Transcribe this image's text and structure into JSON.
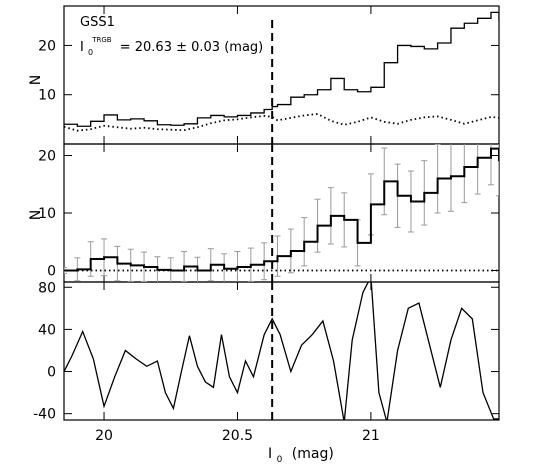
{
  "chart_data": [
    {
      "type": "line",
      "panel": "top",
      "title": "GSS1",
      "annotation": {
        "symbol": "I",
        "subscript": "0",
        "superscript": "TRGB",
        "text": "= 20.63 ± 0.03 (mag)"
      },
      "ylabel": "N",
      "xlim": [
        19.85,
        21.48
      ],
      "ylim": [
        0,
        28
      ],
      "yticks": [
        10,
        20
      ],
      "x": [
        19.85,
        19.9,
        19.95,
        20.0,
        20.05,
        20.1,
        20.15,
        20.2,
        20.25,
        20.3,
        20.35,
        20.4,
        20.45,
        20.5,
        20.55,
        20.6,
        20.63,
        20.65,
        20.7,
        20.75,
        20.8,
        20.85,
        20.9,
        20.95,
        21.0,
        21.05,
        21.1,
        21.15,
        21.2,
        21.25,
        21.3,
        21.35,
        21.4,
        21.45,
        21.48
      ],
      "series": [
        {
          "style": "step",
          "values": [
            4.0,
            3.6,
            4.6,
            5.9,
            4.9,
            5.1,
            4.7,
            3.9,
            3.8,
            4.1,
            5.3,
            5.8,
            5.5,
            5.8,
            6.3,
            7.0,
            7.6,
            8.0,
            9.5,
            10.0,
            11.0,
            13.3,
            11.0,
            10.6,
            11.5,
            16.5,
            20.0,
            19.8,
            19.3,
            20.5,
            23.5,
            24.5,
            25.5,
            26.7,
            25.0
          ]
        },
        {
          "style": "dotted",
          "values": [
            3.5,
            2.7,
            3.0,
            3.7,
            3.4,
            3.1,
            3.3,
            3.0,
            2.9,
            2.8,
            3.4,
            4.2,
            4.8,
            5.0,
            5.4,
            5.7,
            5.5,
            4.8,
            5.3,
            5.8,
            6.1,
            4.7,
            3.9,
            4.5,
            5.4,
            4.5,
            4.1,
            4.9,
            5.4,
            5.6,
            4.9,
            4.1,
            4.8,
            5.5,
            5.3
          ]
        }
      ],
      "trgb_line_x": 20.63
    },
    {
      "type": "line",
      "panel": "middle",
      "ylabel": "N",
      "xlim": [
        19.85,
        21.48
      ],
      "ylim": [
        -2,
        22
      ],
      "yticks": [
        0,
        10,
        20
      ],
      "x": [
        19.85,
        19.9,
        19.95,
        20.0,
        20.05,
        20.1,
        20.15,
        20.2,
        20.25,
        20.3,
        20.35,
        20.4,
        20.45,
        20.5,
        20.55,
        20.6,
        20.65,
        20.7,
        20.75,
        20.8,
        20.85,
        20.9,
        20.95,
        21.0,
        21.05,
        21.1,
        21.15,
        21.2,
        21.25,
        21.3,
        21.35,
        21.4,
        21.45,
        21.48
      ],
      "series": [
        {
          "style": "step-with-errorbars",
          "values": [
            0.0,
            0.2,
            2.0,
            2.3,
            1.2,
            0.9,
            0.6,
            0.1,
            0.0,
            0.7,
            0.0,
            1.0,
            0.3,
            0.6,
            1.0,
            1.6,
            2.5,
            3.4,
            5.0,
            7.8,
            9.5,
            8.8,
            4.8,
            11.5,
            15.5,
            13.0,
            12.0,
            13.5,
            16.0,
            16.4,
            18.0,
            19.6,
            21.2,
            19.0
          ],
          "errors": [
            0.5,
            2.0,
            3.0,
            3.2,
            3.0,
            2.8,
            2.6,
            2.3,
            2.2,
            2.6,
            2.3,
            2.8,
            2.6,
            2.7,
            2.9,
            3.2,
            3.5,
            3.8,
            4.2,
            4.6,
            4.9,
            4.7,
            4.0,
            5.3,
            5.8,
            5.5,
            5.3,
            5.6,
            6.0,
            6.1,
            6.2,
            6.3,
            6.3,
            6.0
          ]
        },
        {
          "style": "dotted",
          "values": [
            0,
            0,
            0,
            0,
            0,
            0,
            0,
            0,
            0,
            0,
            0,
            0,
            0,
            0,
            0,
            0,
            0,
            0,
            0,
            0,
            0,
            0,
            0,
            0,
            0,
            0,
            0,
            0,
            0,
            0,
            0,
            0,
            0,
            0
          ]
        }
      ],
      "trgb_line_x": 20.63
    },
    {
      "type": "line",
      "panel": "bottom",
      "xlabel": "I",
      "xlabel_subscript": "0",
      "xlabel_unit": "(mag)",
      "xlim": [
        19.85,
        21.48
      ],
      "ylim": [
        -46,
        85
      ],
      "yticks": [
        -40,
        0,
        40,
        80
      ],
      "xticks": [
        20,
        20.5,
        21
      ],
      "xtick_labels": [
        "20",
        "20.5",
        "21"
      ],
      "x": [
        19.85,
        19.88,
        19.92,
        19.96,
        20.0,
        20.04,
        20.08,
        20.12,
        20.16,
        20.2,
        20.23,
        20.26,
        20.29,
        20.32,
        20.35,
        20.38,
        20.41,
        20.44,
        20.47,
        20.5,
        20.53,
        20.56,
        20.6,
        20.63,
        20.66,
        20.7,
        20.74,
        20.78,
        20.82,
        20.86,
        20.9,
        20.93,
        20.97,
        21.0,
        21.03,
        21.06,
        21.1,
        21.14,
        21.18,
        21.22,
        21.26,
        21.3,
        21.34,
        21.38,
        21.42,
        21.46,
        21.48
      ],
      "series": [
        {
          "style": "solid",
          "values": [
            0,
            15,
            38,
            12,
            -33,
            -5,
            20,
            12,
            5,
            10,
            -20,
            -35,
            0,
            34,
            5,
            -10,
            -15,
            35,
            -5,
            -20,
            10,
            -5,
            35,
            50,
            35,
            0,
            25,
            35,
            48,
            10,
            -48,
            30,
            75,
            90,
            -20,
            -48,
            20,
            60,
            65,
            25,
            -15,
            30,
            60,
            50,
            -20,
            -45,
            -45
          ]
        }
      ],
      "trgb_line_x": 20.63
    }
  ]
}
